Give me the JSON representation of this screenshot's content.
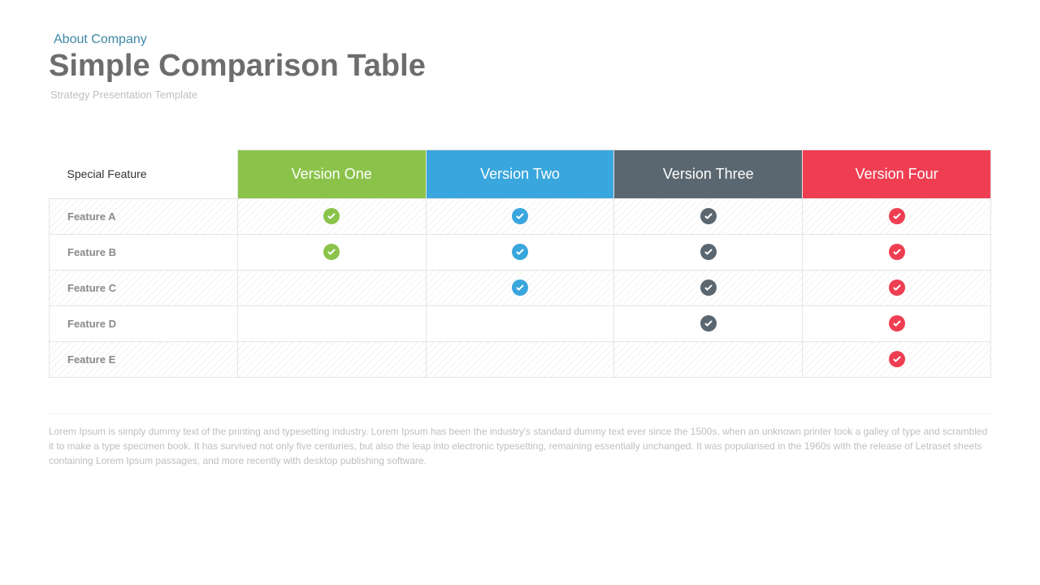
{
  "header": {
    "eyebrow": "About Company",
    "title": "Simple Comparison Table",
    "subtitle": "Strategy Presentation Template",
    "eyebrow_color": "#3d87a6",
    "title_color": "#6d6d6d",
    "subtitle_color": "#bfbfbf"
  },
  "table": {
    "feature_header": "Special Feature",
    "columns": [
      {
        "label": "Version One",
        "color": "#8bc34a"
      },
      {
        "label": "Version Two",
        "color": "#39a6dd"
      },
      {
        "label": "Version Three",
        "color": "#5b6770"
      },
      {
        "label": "Version Four",
        "color": "#ef3e52"
      }
    ],
    "rows": [
      {
        "label": "Feature A",
        "checks": [
          true,
          true,
          true,
          true
        ],
        "hatched": true
      },
      {
        "label": "Feature B",
        "checks": [
          true,
          true,
          true,
          true
        ],
        "hatched": false
      },
      {
        "label": "Feature C",
        "checks": [
          false,
          true,
          true,
          true
        ],
        "hatched": true
      },
      {
        "label": "Feature D",
        "checks": [
          false,
          false,
          true,
          true
        ],
        "hatched": false
      },
      {
        "label": "Feature E",
        "checks": [
          false,
          false,
          false,
          true
        ],
        "hatched": true
      }
    ],
    "row_label_color": "#8a8a8a",
    "border_color": "#e5e5e5"
  },
  "body_text": "Lorem Ipsum is simply dummy text of the printing and typesetting industry. Lorem Ipsum has been the industry's standard dummy text ever since the 1500s, when an unknown printer took a galley of type and scrambled it to make a type specimen book. It has survived not only five centuries, but also the leap into electronic typesetting, remaining essentially unchanged. It was popularised in the 1960s with the release of Letraset sheets containing Lorem Ipsum passages, and more recently with desktop publishing software.",
  "body_text_color": "#bfbfbf"
}
